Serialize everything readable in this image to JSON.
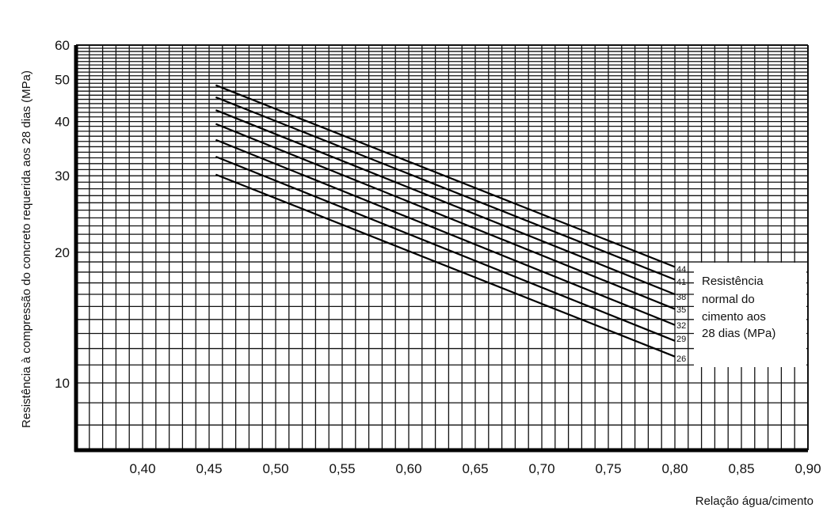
{
  "chart_data": {
    "type": "line",
    "title": "",
    "xlabel": "Relação água/cimento",
    "ylabel": "Resistência à compressão do concreto requerida aos 28 dias (MPa)",
    "xlim": [
      0.35,
      0.9
    ],
    "ylim": [
      7,
      60
    ],
    "y_scale": "log",
    "grid": true,
    "x_ticks": [
      "0,40",
      "0,45",
      "0,50",
      "0,55",
      "0,60",
      "0,65",
      "0,70",
      "0,75",
      "0,80",
      "0,85",
      "0,90"
    ],
    "y_ticks": [
      "10",
      "20",
      "30",
      "40",
      "50",
      "60"
    ],
    "legend": {
      "title_lines": [
        "Resistência",
        "normal do",
        "cimento aos",
        "28 dias (MPa)"
      ],
      "placement": "right"
    },
    "series": [
      {
        "name": "44",
        "x": [
          0.455,
          0.8
        ],
        "y": [
          48.5,
          18.5
        ]
      },
      {
        "name": "41",
        "x": [
          0.455,
          0.8
        ],
        "y": [
          45.5,
          17.3
        ]
      },
      {
        "name": "38",
        "x": [
          0.455,
          0.8
        ],
        "y": [
          42.5,
          16.0
        ]
      },
      {
        "name": "35",
        "x": [
          0.455,
          0.8
        ],
        "y": [
          39.5,
          14.8
        ]
      },
      {
        "name": "32",
        "x": [
          0.455,
          0.8
        ],
        "y": [
          36.3,
          13.6
        ]
      },
      {
        "name": "29",
        "x": [
          0.455,
          0.8
        ],
        "y": [
          33.2,
          12.5
        ]
      },
      {
        "name": "26",
        "x": [
          0.455,
          0.8
        ],
        "y": [
          30.2,
          11.5
        ]
      }
    ]
  }
}
